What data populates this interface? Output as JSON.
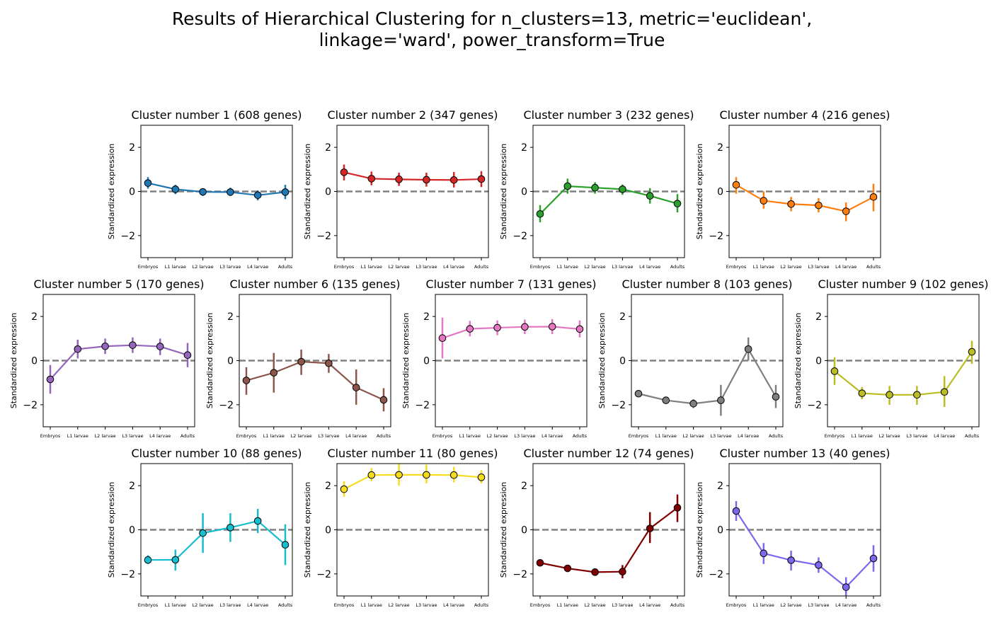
{
  "title_lines": [
    "Results of Hierarchical Clustering for n_clusters=13, metric='euclidean',",
    "linkage='ward', power_transform=True"
  ],
  "chart_data": [
    {
      "type": "line",
      "title": "Cluster number 1 (608 genes)",
      "ylabel": "Standardized expression",
      "categories": [
        "Embryos",
        "L1 larvae",
        "L2 larvae",
        "L3 larvae",
        "L4 larvae",
        "Adults"
      ],
      "yticks": [
        -2,
        0,
        2
      ],
      "ylim": [
        -3,
        3
      ],
      "reference_line": 0,
      "color": "#1f77b4",
      "values": [
        0.38,
        0.1,
        -0.02,
        -0.03,
        -0.17,
        -0.03
      ],
      "error_low": [
        0.13,
        -0.12,
        -0.2,
        -0.2,
        -0.4,
        -0.35
      ],
      "error_high": [
        0.65,
        0.3,
        0.13,
        0.17,
        0.05,
        0.3
      ]
    },
    {
      "type": "line",
      "title": "Cluster number 2 (347 genes)",
      "ylabel": "Standardized expression",
      "categories": [
        "Embryos",
        "L1 larvae",
        "L2 larvae",
        "L3 larvae",
        "L4 larvae",
        "Adults"
      ],
      "yticks": [
        -2,
        0,
        2
      ],
      "ylim": [
        -3,
        3
      ],
      "reference_line": 0,
      "color": "#d62728",
      "values": [
        0.87,
        0.58,
        0.55,
        0.53,
        0.52,
        0.56
      ],
      "error_low": [
        0.5,
        0.28,
        0.25,
        0.22,
        0.18,
        0.2
      ],
      "error_high": [
        1.22,
        0.9,
        0.85,
        0.85,
        0.88,
        0.92
      ]
    },
    {
      "type": "line",
      "title": "Cluster number 3 (232 genes)",
      "ylabel": "Standardized expression",
      "categories": [
        "Embryos",
        "L1 larvae",
        "L2 larvae",
        "L3 larvae",
        "L4 larvae",
        "Adults"
      ],
      "yticks": [
        -2,
        0,
        2
      ],
      "ylim": [
        -3,
        3
      ],
      "reference_line": 0,
      "color": "#2ca02c",
      "values": [
        -1.02,
        0.24,
        0.17,
        0.1,
        -0.2,
        -0.55
      ],
      "error_low": [
        -1.4,
        -0.1,
        -0.1,
        -0.15,
        -0.55,
        -0.95
      ],
      "error_high": [
        -0.62,
        0.58,
        0.42,
        0.32,
        0.15,
        -0.12
      ]
    },
    {
      "type": "line",
      "title": "Cluster number 4 (216 genes)",
      "ylabel": "Standardized expression",
      "categories": [
        "Embryos",
        "L1 larvae",
        "L2 larvae",
        "L3 larvae",
        "L4 larvae",
        "Adults"
      ],
      "yticks": [
        -2,
        0,
        2
      ],
      "ylim": [
        -3,
        3
      ],
      "reference_line": 0,
      "color": "#ff7f0e",
      "values": [
        0.3,
        -0.42,
        -0.57,
        -0.63,
        -0.9,
        -0.25
      ],
      "error_low": [
        -0.1,
        -0.78,
        -0.9,
        -0.95,
        -1.35,
        -0.9
      ],
      "error_high": [
        0.65,
        0,
        -0.25,
        -0.3,
        -0.5,
        0.35
      ]
    },
    {
      "type": "line",
      "title": "Cluster number 5 (170 genes)",
      "ylabel": "Standardized expression",
      "categories": [
        "Embryos",
        "L1 larvae",
        "L2 larvae",
        "L3 larvae",
        "L4 larvae",
        "Adults"
      ],
      "yticks": [
        -2,
        0,
        2
      ],
      "ylim": [
        -3,
        3
      ],
      "reference_line": 0,
      "color": "#9467bd",
      "values": [
        -0.85,
        0.52,
        0.65,
        0.7,
        0.64,
        0.25
      ],
      "error_low": [
        -1.5,
        0.1,
        0.3,
        0.35,
        0.25,
        -0.3
      ],
      "error_high": [
        -0.2,
        0.95,
        1.0,
        1.05,
        1.0,
        0.8
      ]
    },
    {
      "type": "line",
      "title": "Cluster number 6 (135 genes)",
      "ylabel": "Standardized expression",
      "categories": [
        "Embryos",
        "L1 larvae",
        "L2 larvae",
        "L3 larvae",
        "L4 larvae",
        "Adults"
      ],
      "yticks": [
        -2,
        0,
        2
      ],
      "ylim": [
        -3,
        3
      ],
      "reference_line": 0,
      "color": "#8c564b",
      "values": [
        -0.9,
        -0.55,
        -0.05,
        -0.12,
        -1.22,
        -1.78
      ],
      "error_low": [
        -1.55,
        -1.45,
        -0.65,
        -0.55,
        -2.0,
        -2.3
      ],
      "error_high": [
        -0.3,
        0.35,
        0.5,
        0.3,
        -0.4,
        -1.25
      ]
    },
    {
      "type": "line",
      "title": "Cluster number 7 (131 genes)",
      "ylabel": "Standardized expression",
      "categories": [
        "Embryos",
        "L1 larvae",
        "L2 larvae",
        "L3 larvae",
        "L4 larvae",
        "Adults"
      ],
      "yticks": [
        -2,
        0,
        2
      ],
      "ylim": [
        -3,
        3
      ],
      "reference_line": 0,
      "color": "#e377c2",
      "values": [
        1.02,
        1.44,
        1.49,
        1.53,
        1.54,
        1.43
      ],
      "error_low": [
        0.1,
        1.1,
        1.15,
        1.2,
        1.2,
        1.05
      ],
      "error_high": [
        1.95,
        1.8,
        1.82,
        1.86,
        1.88,
        1.82
      ]
    },
    {
      "type": "line",
      "title": "Cluster number 8 (103 genes)",
      "ylabel": "Standardized expression",
      "categories": [
        "Embryos",
        "L1 larvae",
        "L2 larvae",
        "L3 larvae",
        "L4 larvae",
        "Adults"
      ],
      "yticks": [
        -2,
        0,
        2
      ],
      "ylim": [
        -3,
        3
      ],
      "reference_line": 0,
      "color": "#7f7f7f",
      "values": [
        -1.5,
        -1.8,
        -1.95,
        -1.8,
        0.52,
        -1.64
      ],
      "error_low": [
        -1.6,
        -1.9,
        -2.15,
        -2.5,
        0,
        -2.15
      ],
      "error_high": [
        -1.4,
        -1.7,
        -1.75,
        -1.1,
        1.05,
        -1.1
      ]
    },
    {
      "type": "line",
      "title": "Cluster number 9 (102 genes)",
      "ylabel": "Standardized expression",
      "categories": [
        "Embryos",
        "L1 larvae",
        "L2 larvae",
        "L3 larvae",
        "L4 larvae",
        "Adults"
      ],
      "yticks": [
        -2,
        0,
        2
      ],
      "ylim": [
        -3,
        3
      ],
      "reference_line": 0,
      "color": "#bcbd22",
      "values": [
        -0.48,
        -1.48,
        -1.55,
        -1.55,
        -1.42,
        0.4
      ],
      "error_low": [
        -1.1,
        -1.75,
        -2.0,
        -2.0,
        -2.1,
        -0.15
      ],
      "error_high": [
        0.15,
        -1.2,
        -1.15,
        -1.15,
        -0.7,
        0.9
      ]
    },
    {
      "type": "line",
      "title": "Cluster number 10 (88 genes)",
      "ylabel": "Standardized expression",
      "categories": [
        "Embryos",
        "L1 larvae",
        "L2 larvae",
        "L3 larvae",
        "L4 larvae",
        "Adults"
      ],
      "yticks": [
        -2,
        0,
        2
      ],
      "ylim": [
        -3,
        3
      ],
      "reference_line": 0,
      "color": "#17becf",
      "values": [
        -1.37,
        -1.36,
        -0.15,
        0.1,
        0.4,
        -0.68
      ],
      "error_low": [
        -1.55,
        -1.85,
        -1.05,
        -0.55,
        -0.15,
        -1.6
      ],
      "error_high": [
        -1.15,
        -0.9,
        0.75,
        0.75,
        0.95,
        0.25
      ]
    },
    {
      "type": "line",
      "title": "Cluster number 11 (80 genes)",
      "ylabel": "Standardized expression",
      "categories": [
        "Embryos",
        "L1 larvae",
        "L2 larvae",
        "L3 larvae",
        "L4 larvae",
        "Adults"
      ],
      "yticks": [
        -2,
        0,
        2
      ],
      "ylim": [
        -3,
        3
      ],
      "reference_line": 0,
      "color": "#f5dc1d",
      "values": [
        1.84,
        2.48,
        2.49,
        2.49,
        2.48,
        2.38
      ],
      "error_low": [
        1.5,
        2.2,
        2.0,
        2.1,
        2.15,
        2.1
      ],
      "error_high": [
        2.2,
        2.8,
        3.0,
        2.95,
        2.85,
        2.7
      ]
    },
    {
      "type": "line",
      "title": "Cluster number 12 (74 genes)",
      "ylabel": "Standardized expression",
      "categories": [
        "Embryos",
        "L1 larvae",
        "L2 larvae",
        "L3 larvae",
        "L4 larvae",
        "Adults"
      ],
      "yticks": [
        -2,
        0,
        2
      ],
      "ylim": [
        -3,
        3
      ],
      "reference_line": 0,
      "color": "#800000",
      "values": [
        -1.5,
        -1.75,
        -1.92,
        -1.9,
        0.06,
        1.0
      ],
      "error_low": [
        -1.6,
        -1.85,
        -2.05,
        -2.2,
        -0.6,
        0.35
      ],
      "error_high": [
        -1.4,
        -1.65,
        -1.8,
        -1.6,
        0.8,
        1.6
      ]
    },
    {
      "type": "line",
      "title": "Cluster number 13 (40 genes)",
      "ylabel": "Standardized expression",
      "categories": [
        "Embryos",
        "L1 larvae",
        "L2 larvae",
        "L3 larvae",
        "L4 larvae",
        "Adults"
      ],
      "yticks": [
        -2,
        0,
        2
      ],
      "ylim": [
        -3,
        3
      ],
      "reference_line": 0,
      "color": "#7b68ee",
      "values": [
        0.85,
        -1.07,
        -1.38,
        -1.6,
        -2.6,
        -1.3
      ],
      "error_low": [
        0.4,
        -1.55,
        -1.85,
        -1.95,
        -3.0,
        -1.9
      ],
      "error_high": [
        1.3,
        -0.6,
        -0.95,
        -1.25,
        -2.15,
        -0.7
      ]
    }
  ]
}
